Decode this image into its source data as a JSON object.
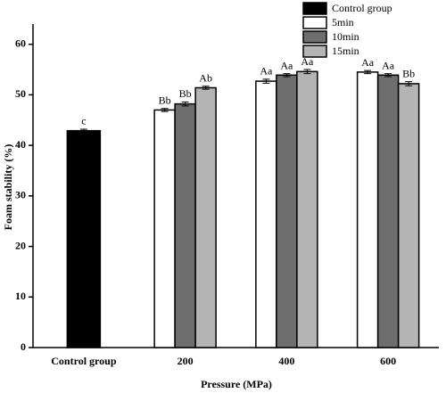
{
  "chart_data": {
    "type": "bar",
    "y_label": "Foam stability (%)",
    "x_label": "Pressure (MPa)",
    "categories": [
      "Control group",
      "200",
      "400",
      "600"
    ],
    "series": [
      {
        "name": "Control group",
        "color": "#000000",
        "values": [
          42.9,
          null,
          null,
          null
        ],
        "errors": [
          0.3,
          null,
          null,
          null
        ],
        "value_labels": [
          "c",
          null,
          null,
          null
        ]
      },
      {
        "name": "5min",
        "color": "#ffffff",
        "values": [
          null,
          47.0,
          52.7,
          54.5
        ],
        "errors": [
          null,
          0.3,
          0.4,
          0.3
        ],
        "value_labels": [
          null,
          "Bb",
          "Aa",
          "Aa"
        ]
      },
      {
        "name": "10min",
        "color": "#6e6e6e",
        "values": [
          null,
          48.2,
          53.9,
          53.9
        ],
        "errors": [
          null,
          0.4,
          0.3,
          0.3
        ],
        "value_labels": [
          null,
          "Bb",
          "Aa",
          "Aa"
        ]
      },
      {
        "name": "15min",
        "color": "#b4b4b4",
        "values": [
          null,
          51.4,
          54.6,
          52.2
        ],
        "errors": [
          null,
          0.3,
          0.4,
          0.4
        ],
        "value_labels": [
          null,
          "Ab",
          "Aa",
          "Bb"
        ]
      }
    ],
    "ylim": [
      0,
      64
    ],
    "yticks": [
      0,
      10,
      20,
      30,
      40,
      50,
      60
    ]
  }
}
